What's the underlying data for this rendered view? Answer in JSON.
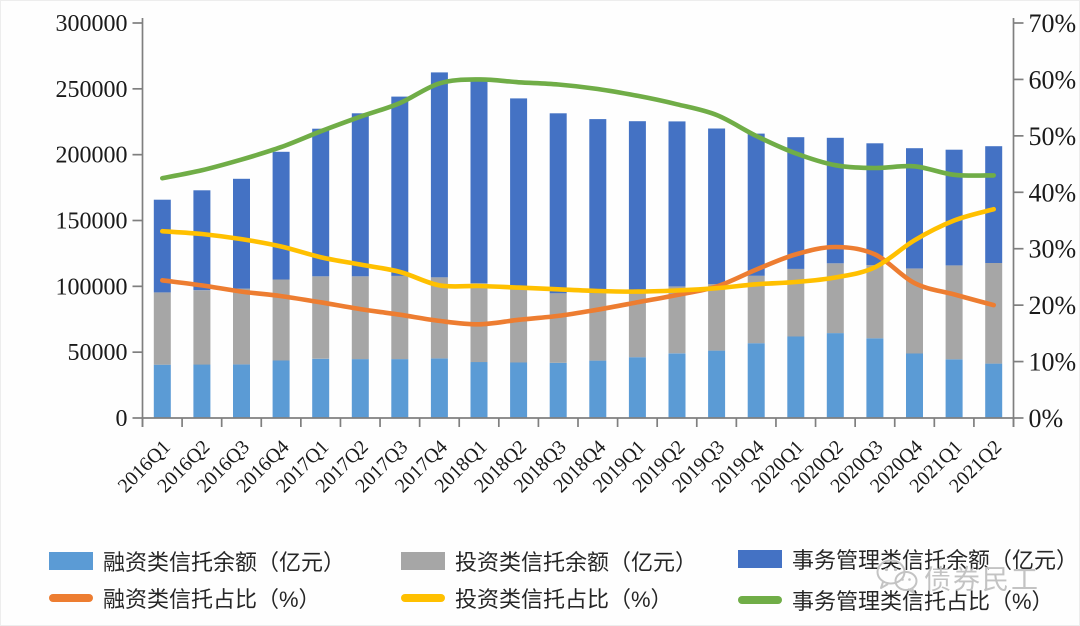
{
  "watermark": {
    "text": "债券民工"
  },
  "legend": {
    "items": [
      {
        "label": "融资类信托余额（亿元）",
        "color": "#5B9BD5",
        "shape": "bar"
      },
      {
        "label": "投资类信托余额（亿元）",
        "color": "#A6A6A6",
        "shape": "bar"
      },
      {
        "label": "事务管理类信托余额（亿元）",
        "color": "#4472C4",
        "shape": "bar"
      },
      {
        "label": "融资类信托占比（%）",
        "color": "#ED7D31",
        "shape": "line"
      },
      {
        "label": "投资类信托占比（%）",
        "color": "#FFC000",
        "shape": "line"
      },
      {
        "label": "事务管理类信托占比（%）",
        "color": "#70AD47",
        "shape": "line"
      }
    ]
  },
  "chart_data": {
    "type": "bar",
    "subtype": "stacked-bars-with-percentage-lines",
    "title": "",
    "xlabel": "",
    "ylabel_left": "",
    "ylabel_right": "",
    "grid": false,
    "legend_position": "bottom",
    "categories": [
      "2016Q1",
      "2016Q2",
      "2016Q3",
      "2016Q4",
      "2017Q1",
      "2017Q2",
      "2017Q3",
      "2017Q4",
      "2018Q1",
      "2018Q2",
      "2018Q3",
      "2018Q4",
      "2019Q1",
      "2019Q2",
      "2019Q3",
      "2019Q4",
      "2020Q1",
      "2020Q2",
      "2020Q3",
      "2020Q4",
      "2021Q1",
      "2021Q2"
    ],
    "bar_series": [
      {
        "id": "financing",
        "name": "融资类信托余额（亿元）",
        "color": "#5B9BD5",
        "values": [
          40500,
          40600,
          40700,
          43700,
          45000,
          44700,
          44700,
          45200,
          42500,
          42200,
          41900,
          43600,
          46200,
          49100,
          51200,
          56800,
          61900,
          64500,
          60500,
          49000,
          44600,
          41300
        ]
      },
      {
        "id": "investment",
        "name": "投资类信托余额（亿元）",
        "color": "#A6A6A6",
        "values": [
          54900,
          56400,
          57600,
          61500,
          62600,
          62900,
          63200,
          61700,
          59900,
          56100,
          52800,
          51100,
          50500,
          50900,
          50600,
          51200,
          51400,
          53000,
          55700,
          64500,
          71300,
          76400
        ]
      },
      {
        "id": "administrative",
        "name": "事务管理类信托余额（亿元）",
        "color": "#4472C4",
        "values": [
          70400,
          75900,
          83400,
          97000,
          112100,
          123800,
          136200,
          155600,
          153700,
          144400,
          136700,
          132300,
          128700,
          125300,
          118100,
          108000,
          100000,
          95300,
          92400,
          91400,
          87900,
          88700
        ]
      }
    ],
    "bar_totals": [
      165800,
      172900,
      181700,
      202200,
      219700,
      231400,
      244100,
      262500,
      256100,
      242700,
      231400,
      227000,
      225400,
      225300,
      219900,
      216000,
      213300,
      212800,
      208600,
      204900,
      203800,
      206400
    ],
    "line_series": [
      {
        "id": "financing-pct",
        "name": "融资类信托占比（%）",
        "color": "#ED7D31",
        "values": [
          24.4,
          23.5,
          22.4,
          21.6,
          20.5,
          19.3,
          18.3,
          17.2,
          16.6,
          17.4,
          18.1,
          19.2,
          20.5,
          21.8,
          23.3,
          26.3,
          29.0,
          30.3,
          29.0,
          23.9,
          21.9,
          20.0
        ]
      },
      {
        "id": "investment-pct",
        "name": "投资类信托占比（%）",
        "color": "#FFC000",
        "values": [
          33.1,
          32.6,
          31.7,
          30.4,
          28.5,
          27.2,
          25.9,
          23.5,
          23.4,
          23.1,
          22.8,
          22.5,
          22.4,
          22.6,
          23.0,
          23.7,
          24.1,
          24.9,
          26.7,
          31.5,
          35.0,
          37.0
        ]
      },
      {
        "id": "administrative-pct",
        "name": "事务管理类信托占比（%）",
        "color": "#70AD47",
        "values": [
          42.5,
          43.9,
          45.8,
          48.0,
          50.8,
          53.4,
          55.8,
          59.3,
          60.0,
          59.5,
          59.1,
          58.3,
          57.1,
          55.6,
          53.7,
          50.0,
          46.9,
          44.8,
          44.3,
          44.6,
          43.1,
          43.0
        ]
      }
    ],
    "left_axis": {
      "min": 0,
      "max": 300000,
      "tick_step": 50000,
      "tick_labels": [
        "0",
        "50000",
        "100000",
        "150000",
        "200000",
        "250000",
        "300000"
      ]
    },
    "right_axis": {
      "min": 0,
      "max": 70,
      "tick_step": 10,
      "tick_labels": [
        "0%",
        "10%",
        "20%",
        "30%",
        "40%",
        "50%",
        "60%",
        "70%"
      ]
    }
  }
}
